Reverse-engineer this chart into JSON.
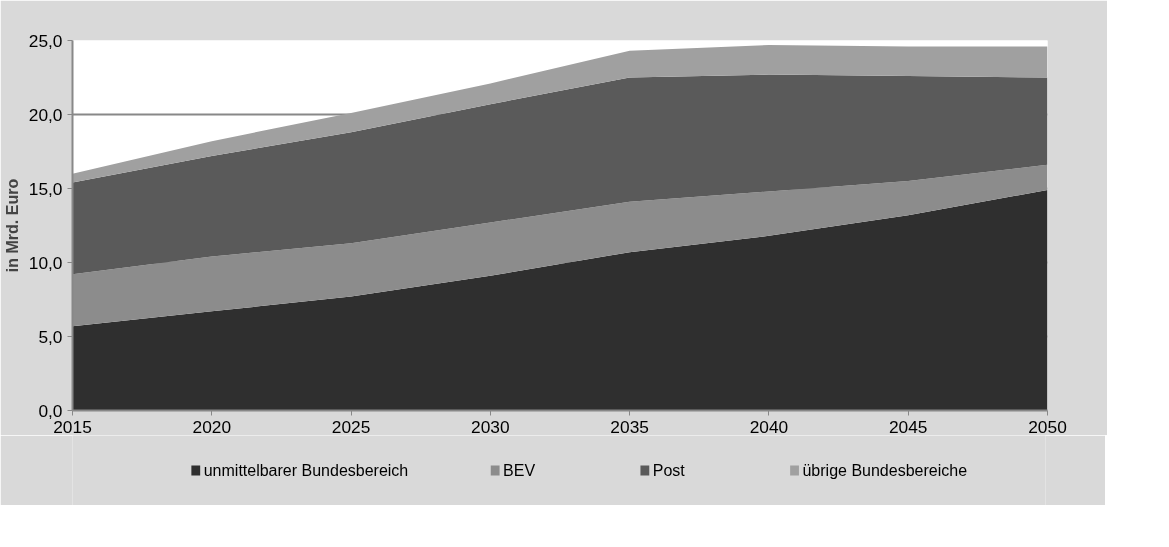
{
  "chart_data": {
    "type": "area",
    "stacked": true,
    "ylabel": "in Mrd. Euro",
    "x": [
      2015,
      2020,
      2025,
      2030,
      2035,
      2040,
      2045,
      2050
    ],
    "xlim": [
      2015,
      2050
    ],
    "xticks": [
      2015,
      2020,
      2025,
      2030,
      2035,
      2040,
      2045,
      2050
    ],
    "ylim": [
      0,
      25
    ],
    "yticks": [
      {
        "value": 0,
        "label": "0,0"
      },
      {
        "value": 5,
        "label": "5,0"
      },
      {
        "value": 10,
        "label": "10,0"
      },
      {
        "value": 15,
        "label": "15,0"
      },
      {
        "value": 20,
        "label": "20,0"
      },
      {
        "value": 25,
        "label": "25,0"
      }
    ],
    "grid": "y",
    "legend": "bottom",
    "series": [
      {
        "name": "unmittelbarer Bundesbereich",
        "color": "#2f2f2f",
        "values": [
          5.7,
          6.7,
          7.7,
          9.1,
          10.7,
          11.8,
          13.2,
          14.9
        ]
      },
      {
        "name": "BEV",
        "color": "#8c8c8c",
        "values": [
          3.5,
          3.7,
          3.6,
          3.6,
          3.4,
          3.0,
          2.3,
          1.7
        ]
      },
      {
        "name": "Post",
        "color": "#5a5a5a",
        "values": [
          6.2,
          6.8,
          7.5,
          8.0,
          8.4,
          7.9,
          7.1,
          5.9
        ]
      },
      {
        "name": "übrige Bundesbereiche",
        "color": "#a0a0a0",
        "values": [
          0.6,
          1.0,
          1.3,
          1.4,
          1.8,
          2.0,
          2.0,
          2.1
        ]
      }
    ]
  }
}
